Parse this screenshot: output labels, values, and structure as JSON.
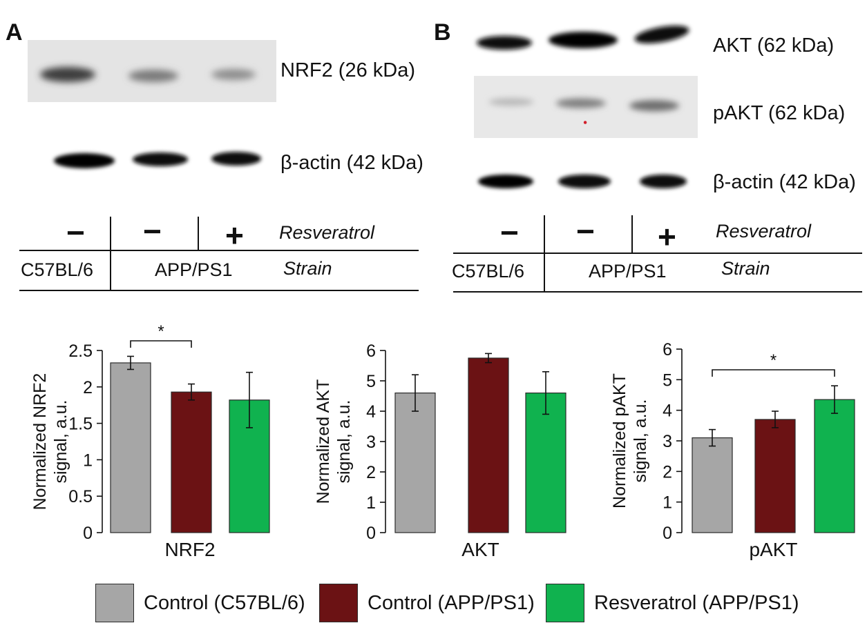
{
  "panel_a": {
    "letter": "A",
    "blots": [
      "NRF2 (26 kDa)",
      "β-actin (42 kDa)"
    ],
    "treatment_signs": [
      "−",
      "−",
      "+"
    ],
    "treatment_label": "Resveratrol",
    "strains": [
      "C57BL/6",
      "APP/PS1"
    ],
    "strain_label": "Strain"
  },
  "panel_b": {
    "letter": "B",
    "blots": [
      "AKT (62 kDa)",
      "pAKT (62 kDa)",
      "β-actin (42 kDa)"
    ],
    "treatment_signs": [
      "−",
      "−",
      "+"
    ],
    "treatment_label": "Resveratrol",
    "strains": [
      "C57BL/6",
      "APP/PS1"
    ],
    "strain_label": "Strain"
  },
  "legend": [
    {
      "label": "Control (C57BL/6)",
      "color": "#a6a6a6"
    },
    {
      "label": "Control (APP/PS1)",
      "color": "#6b1214"
    },
    {
      "label": "Resveratrol (APP/PS1)",
      "color": "#10b24f"
    }
  ],
  "chart_data": [
    {
      "type": "bar",
      "categories": [
        "Control (C57BL/6)",
        "Control (APP/PS1)",
        "Resveratrol (APP/PS1)"
      ],
      "values": [
        2.33,
        1.93,
        1.82
      ],
      "errors": [
        0.09,
        0.11,
        0.38
      ],
      "colors": [
        "#a6a6a6",
        "#6b1214",
        "#10b24f"
      ],
      "xlabel": "NRF2",
      "ylabel": [
        "Normalized NRF2",
        "signal, a.u."
      ],
      "ylim": [
        0,
        2.5
      ],
      "yticks": [
        "0",
        "0.5",
        "1",
        "1.5",
        "2",
        "2.5"
      ],
      "significance": [
        {
          "between": [
            0,
            1
          ],
          "label": "*"
        }
      ]
    },
    {
      "type": "bar",
      "categories": [
        "Control (C57BL/6)",
        "Control (APP/PS1)",
        "Resveratrol (APP/PS1)"
      ],
      "values": [
        4.6,
        5.75,
        4.6
      ],
      "errors": [
        0.6,
        0.15,
        0.7
      ],
      "colors": [
        "#a6a6a6",
        "#6b1214",
        "#10b24f"
      ],
      "xlabel": "AKT",
      "ylabel": [
        "Normalized AKT",
        "signal, a.u."
      ],
      "ylim": [
        0,
        6
      ],
      "yticks": [
        "0",
        "1",
        "2",
        "3",
        "4",
        "5",
        "6"
      ],
      "significance": []
    },
    {
      "type": "bar",
      "categories": [
        "Control (C57BL/6)",
        "Control (APP/PS1)",
        "Resveratrol (APP/PS1)"
      ],
      "values": [
        3.1,
        3.7,
        4.35
      ],
      "errors": [
        0.27,
        0.27,
        0.45
      ],
      "colors": [
        "#a6a6a6",
        "#6b1214",
        "#10b24f"
      ],
      "xlabel": "pAKT",
      "ylabel": [
        "Normalized pAKT",
        "signal, a.u."
      ],
      "ylim": [
        0,
        6
      ],
      "yticks": [
        "0",
        "1",
        "2",
        "3",
        "4",
        "5",
        "6"
      ],
      "significance": [
        {
          "between": [
            0,
            2
          ],
          "label": "*"
        }
      ]
    }
  ]
}
